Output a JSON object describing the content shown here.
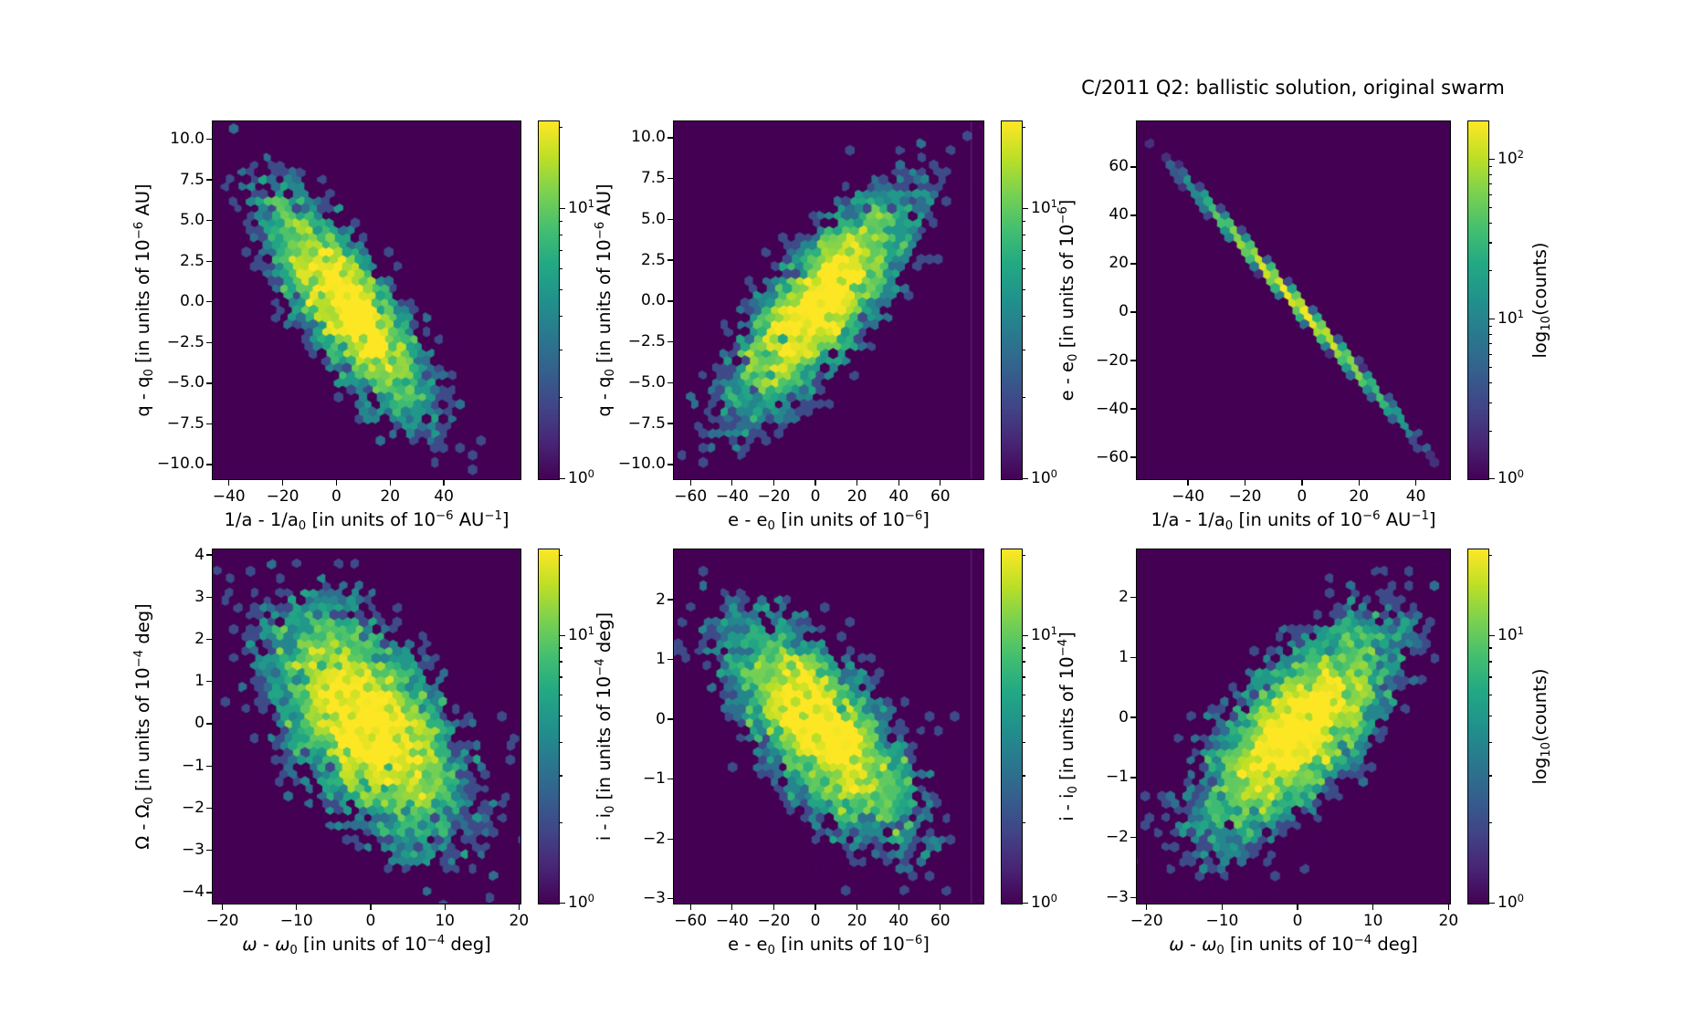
{
  "title": "C/2011 Q2: ballistic solution, original swarm",
  "colors": {
    "figure_background": "#ffffff",
    "axes_background": "#440154",
    "spine": "#000000",
    "text": "#000000",
    "viridis": [
      "#440154",
      "#482475",
      "#414487",
      "#355f8d",
      "#2a788e",
      "#21918c",
      "#22a884",
      "#44bf70",
      "#7ad151",
      "#bddf26",
      "#fde725"
    ]
  },
  "chart_data": [
    {
      "name": "q-vs-inv-a",
      "type": "hexbin",
      "row": 0,
      "col": 0,
      "xlabel": "1/a - 1/a_{0} [in units of 10^{−6} AU^{−1}]",
      "ylabel": "q - q_{0} [in units of 10^{−6} AU]",
      "xlim": [
        -46,
        68.5
      ],
      "ylim": [
        -10.9,
        11.1
      ],
      "xticks": {
        "values": [
          -40,
          -20,
          0,
          20,
          40
        ],
        "labels": [
          "−40",
          "−20",
          "0",
          "20",
          "40"
        ]
      },
      "yticks": {
        "values": [
          10,
          7.5,
          5,
          2.5,
          0,
          -2.5,
          -5,
          -7.5,
          -10
        ],
        "labels": [
          "10.0",
          "7.5",
          "5.0",
          "2.5",
          "0.0",
          "−2.5",
          "−5.0",
          "−7.5",
          "−10.0"
        ]
      },
      "dist": {
        "kind": "gauss",
        "n": 4300,
        "mx": 4,
        "my": -0.3,
        "sx": 16,
        "sy": 3.6,
        "rho": -0.78,
        "seed": 101
      },
      "scale": {
        "vmax": 21,
        "ticks": [
          {
            "v": 10,
            "l": "10^{1}"
          },
          {
            "v": 1,
            "l": "10^{0}"
          }
        ],
        "label": null
      }
    },
    {
      "name": "q-vs-e",
      "type": "hexbin",
      "row": 0,
      "col": 1,
      "xlabel": "e - e_{0} [in units of 10^{−6}]",
      "ylabel": "q - q_{0} [in units of 10^{−6} AU]",
      "xlim": [
        -68,
        80.7
      ],
      "ylim": [
        -10.9,
        11.0
      ],
      "xticks": {
        "values": [
          -60,
          -40,
          -20,
          0,
          20,
          40,
          60
        ],
        "labels": [
          "−60",
          "−40",
          "−20",
          "0",
          "20",
          "40",
          "60"
        ]
      },
      "yticks": {
        "values": [
          10,
          7.5,
          5,
          2.5,
          0,
          -2.5,
          -5,
          -7.5,
          -10
        ],
        "labels": [
          "10.0",
          "7.5",
          "5.0",
          "2.5",
          "0.0",
          "−2.5",
          "−5.0",
          "−7.5",
          "−10.0"
        ]
      },
      "dist": {
        "kind": "gauss",
        "n": 4800,
        "mx": 2,
        "my": -0.2,
        "sx": 23,
        "sy": 3.6,
        "rho": 0.78,
        "seed": 202,
        "seam_x": 74.6
      },
      "scale": {
        "vmax": 21,
        "ticks": [
          {
            "v": 10,
            "l": "10^{1}"
          },
          {
            "v": 1,
            "l": "10^{0}"
          }
        ],
        "label": null
      }
    },
    {
      "name": "e-vs-inv-a",
      "type": "hexbin",
      "row": 0,
      "col": 2,
      "xlabel": "1/a - 1/a_{0} [in units of 10^{−6} AU^{−1}]",
      "ylabel": "e - e_{0} [in units of 10^{−6}]",
      "xlim": [
        -58,
        52
      ],
      "ylim": [
        -69,
        78.8
      ],
      "xticks": {
        "values": [
          -40,
          -20,
          0,
          20,
          40
        ],
        "labels": [
          "−40",
          "−20",
          "0",
          "20",
          "40"
        ]
      },
      "yticks": {
        "values": [
          60,
          40,
          20,
          0,
          -20,
          -40,
          -60
        ],
        "labels": [
          "60",
          "40",
          "20",
          "0",
          "−20",
          "−40",
          "−60"
        ]
      },
      "dist": {
        "kind": "line",
        "n": 3800,
        "mx": -2,
        "sx": 16.5,
        "slope": -1.32,
        "intercept": 1,
        "noise": 1.35,
        "seed": 303
      },
      "scale": {
        "vmax": 172,
        "ticks": [
          {
            "v": 100,
            "l": "10^{2}"
          },
          {
            "v": 10,
            "l": "10^{1}"
          },
          {
            "v": 1,
            "l": "10^{0}"
          }
        ],
        "label": "log_{10}(counts)"
      }
    },
    {
      "name": "Omega-vs-omega",
      "type": "hexbin",
      "row": 1,
      "col": 0,
      "xlabel": "*ω* - *ω*_{0} [in units of 10^{−4} deg]",
      "ylabel": "Ω - Ω_{0} [in units of 10^{−4} deg]",
      "xlim": [
        -21.3,
        20.2
      ],
      "ylim": [
        -4.26,
        4.13
      ],
      "xticks": {
        "values": [
          -20,
          -10,
          0,
          10,
          20
        ],
        "labels": [
          "−20",
          "−10",
          "0",
          "10",
          "20"
        ]
      },
      "yticks": {
        "values": [
          4,
          3,
          2,
          1,
          0,
          -1,
          -2,
          -3,
          -4
        ],
        "labels": [
          "4",
          "3",
          "2",
          "1",
          "0",
          "−1",
          "−2",
          "−3",
          "−4"
        ]
      },
      "dist": {
        "kind": "gauss",
        "n": 7000,
        "mx": -0.5,
        "my": 0,
        "sx": 6.8,
        "sy": 1.45,
        "rho": -0.55,
        "seed": 404
      },
      "scale": {
        "vmax": 21,
        "ticks": [
          {
            "v": 10,
            "l": "10^{1}"
          },
          {
            "v": 1,
            "l": "10^{0}"
          }
        ],
        "label": null
      }
    },
    {
      "name": "i-vs-e",
      "type": "hexbin",
      "row": 1,
      "col": 1,
      "xlabel": "e - e_{0} [in units of 10^{−6}]",
      "ylabel": "i - i_{0} [in units of 10^{−4} deg]",
      "xlim": [
        -68,
        80.7
      ],
      "ylim": [
        -3.08,
        2.84
      ],
      "xticks": {
        "values": [
          -60,
          -40,
          -20,
          0,
          20,
          40,
          60
        ],
        "labels": [
          "−60",
          "−40",
          "−20",
          "0",
          "20",
          "40",
          "60"
        ]
      },
      "yticks": {
        "values": [
          2,
          1,
          0,
          -1,
          -2,
          -3
        ],
        "labels": [
          "2",
          "1",
          "0",
          "−1",
          "−2",
          "−3"
        ]
      },
      "dist": {
        "kind": "gauss",
        "n": 5400,
        "mx": 2,
        "my": -0.15,
        "sx": 23,
        "sy": 0.95,
        "rho": -0.68,
        "seed": 505,
        "seam_x": 74.6
      },
      "scale": {
        "vmax": 21,
        "ticks": [
          {
            "v": 10,
            "l": "10^{1}"
          },
          {
            "v": 1,
            "l": "10^{0}"
          }
        ],
        "label": null
      }
    },
    {
      "name": "i-vs-omega",
      "type": "hexbin",
      "row": 1,
      "col": 2,
      "xlabel": "*ω* - *ω*_{0} [in units of 10^{−4} deg]",
      "ylabel": "i - i_{0} [in units of 10^{−4}]",
      "xlim": [
        -21.3,
        20.2
      ],
      "ylim": [
        -3.1,
        2.8
      ],
      "xticks": {
        "values": [
          -20,
          -10,
          0,
          10,
          20
        ],
        "labels": [
          "−20",
          "−10",
          "0",
          "10",
          "20"
        ]
      },
      "yticks": {
        "values": [
          2,
          1,
          0,
          -1,
          -2,
          -3
        ],
        "labels": [
          "2",
          "1",
          "0",
          "−1",
          "−2",
          "−3"
        ]
      },
      "dist": {
        "kind": "gauss",
        "n": 5800,
        "mx": 0,
        "my": -0.2,
        "sx": 6.8,
        "sy": 0.95,
        "rho": 0.68,
        "seed": 606
      },
      "scale": {
        "vmax": 21,
        "ticks": [
          {
            "v": 10,
            "l": "10^{1}"
          },
          {
            "v": 1,
            "l": "10^{0}"
          }
        ],
        "label": "log_{10}(counts)"
      }
    }
  ]
}
